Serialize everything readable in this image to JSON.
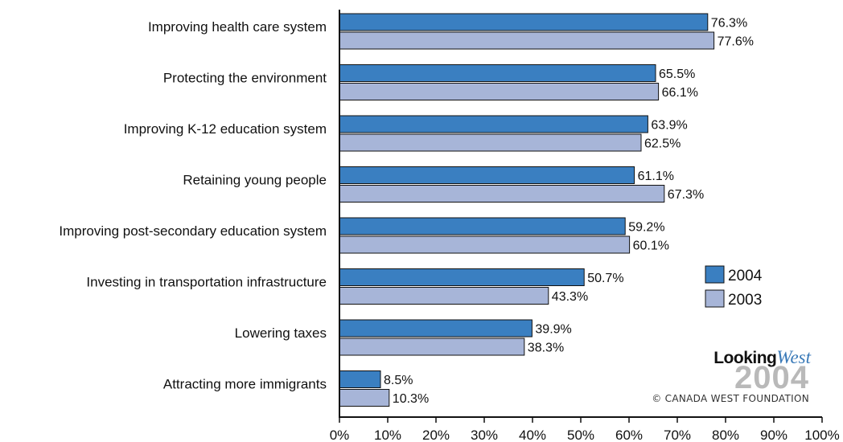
{
  "chart_data": {
    "type": "bar",
    "orientation": "horizontal",
    "categories": [
      "Improving health care system",
      "Protecting the environment",
      "Improving K-12 education system",
      "Retaining young people",
      "Improving post-secondary education system",
      "Investing in transportation infrastructure",
      "Lowering taxes",
      "Attracting more immigrants"
    ],
    "series": [
      {
        "name": "2004",
        "color": "#3a7fc1",
        "values": [
          76.3,
          65.5,
          63.9,
          61.1,
          59.2,
          50.7,
          39.9,
          8.5
        ]
      },
      {
        "name": "2003",
        "color": "#a7b5d8",
        "values": [
          77.6,
          66.1,
          62.5,
          67.3,
          60.1,
          43.3,
          38.3,
          10.3
        ]
      }
    ],
    "data_labels": [
      [
        "76.3%",
        "65.5%",
        "63.9%",
        "61.1%",
        "59.2%",
        "50.7%",
        "39.9%",
        "8.5%"
      ],
      [
        "77.6%",
        "66.1%",
        "62.5%",
        "67.3%",
        "60.1%",
        "43.3%",
        "38.3%",
        "10.3%"
      ]
    ],
    "xlim": [
      0,
      100
    ],
    "x_ticks": [
      0,
      10,
      20,
      30,
      40,
      50,
      60,
      70,
      80,
      90,
      100
    ],
    "x_tick_labels": [
      "0%",
      "10%",
      "20%",
      "30%",
      "40%",
      "50%",
      "60%",
      "70%",
      "80%",
      "90%",
      "100%"
    ],
    "grid": false,
    "legend_position": "right"
  },
  "logo": {
    "looking": "Looking",
    "west": "West",
    "year": "2004",
    "credit": "© CANADA WEST FOUNDATION"
  }
}
